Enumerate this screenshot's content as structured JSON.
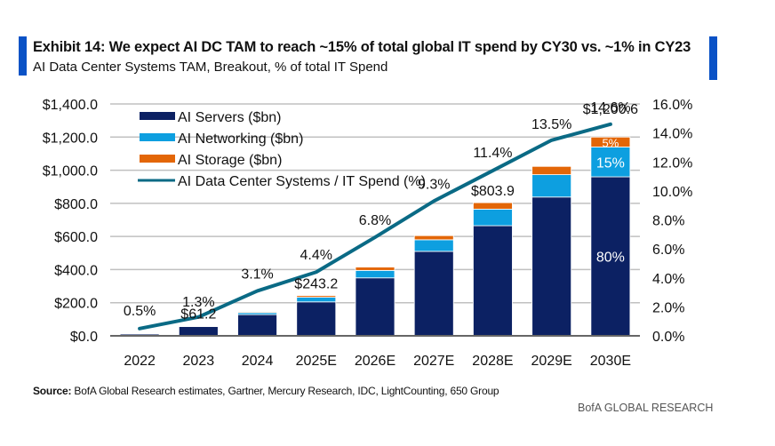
{
  "header": {
    "title": "Exhibit 14: We expect AI DC TAM to reach ~15% of total global IT spend by CY30 vs. ~1% in CY23",
    "subtitle": "AI Data Center Systems TAM, Breakout, % of total IT Spend"
  },
  "footer": {
    "source_label": "Source:",
    "source_text": "BofA Global Research estimates, Gartner, Mercury Research, IDC, LightCounting, 650 Group",
    "brand": "BofA GLOBAL RESEARCH"
  },
  "colors": {
    "accent": "#0a52c6",
    "servers": "#0c2163",
    "networking": "#0d9fe0",
    "storage": "#e36607",
    "line": "#0a6a85",
    "grid": "#c0c0c0",
    "axis": "#666666"
  },
  "chart_data": {
    "type": "bar",
    "stacked": true,
    "title": "AI Data Center Systems TAM, Breakout, % of total IT Spend",
    "xlabel": "",
    "ylabel": "",
    "categories": [
      "2022",
      "2023",
      "2024",
      "2025E",
      "2026E",
      "2027E",
      "2028E",
      "2029E",
      "2030E"
    ],
    "ylim": [
      0,
      1400
    ],
    "y_ticks": [
      "$0.0",
      "$200.0",
      "$400.0",
      "$600.0",
      "$800.0",
      "$1,000.0",
      "$1,200.0",
      "$1,400.0"
    ],
    "y2lim": [
      0,
      16
    ],
    "y2_ticks": [
      "0.0%",
      "2.0%",
      "4.0%",
      "6.0%",
      "8.0%",
      "10.0%",
      "12.0%",
      "14.0%",
      "16.0%"
    ],
    "grid": true,
    "legend_position": "top-left",
    "series": [
      {
        "name": "AI Servers ($bn)",
        "type": "bar",
        "axis": "left",
        "values": [
          14,
          56,
          128,
          205,
          350,
          510,
          665,
          838,
          960
        ]
      },
      {
        "name": "AI Networking ($bn)",
        "type": "bar",
        "axis": "left",
        "values": [
          1,
          4,
          12,
          28,
          45,
          70,
          100,
          135,
          180
        ]
      },
      {
        "name": "AI Storage ($bn)",
        "type": "bar",
        "axis": "left",
        "values": [
          0.5,
          1.2,
          5,
          10,
          20,
          25,
          39,
          50,
          60
        ]
      },
      {
        "name": "AI Data Center Systems / IT Spend (%)",
        "type": "line",
        "axis": "right",
        "values": [
          0.5,
          1.3,
          3.1,
          4.4,
          6.8,
          9.3,
          11.4,
          13.5,
          14.6
        ]
      }
    ],
    "line_labels": [
      "0.5%",
      "1.3%",
      "3.1%",
      "4.4%",
      "6.8%",
      "9.3%",
      "11.4%",
      "13.5%",
      "14.6%"
    ],
    "total_labels": [
      {
        "category": "2023",
        "text": "$61.2",
        "value": 61.2
      },
      {
        "category": "2025E",
        "text": "$243.2",
        "value": 243.2
      },
      {
        "category": "2028E",
        "text": "$803.9",
        "value": 803.9
      },
      {
        "category": "2030E",
        "text": "$1,200.6",
        "value": 1200.6
      }
    ],
    "share_labels_2030": {
      "servers": "80%",
      "networking": "15%",
      "storage": "5%"
    }
  }
}
